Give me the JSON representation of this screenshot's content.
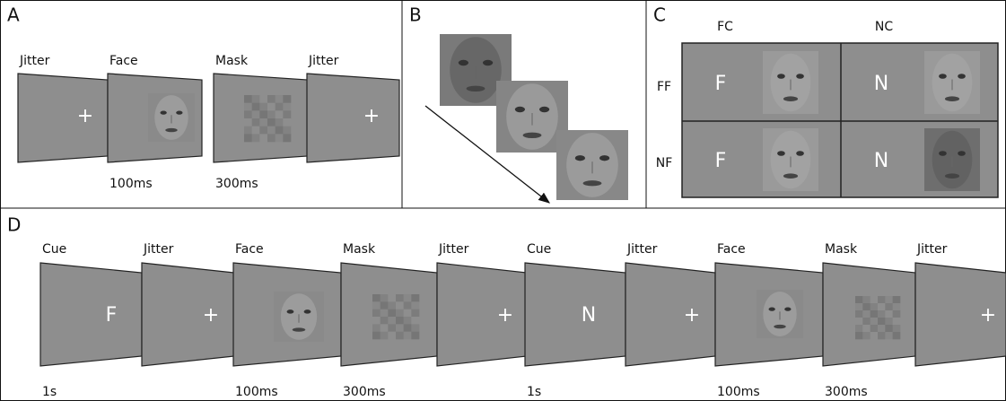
{
  "panel_a": {
    "label": "A",
    "steps": [
      {
        "name": "Jitter",
        "symbol": "+"
      },
      {
        "name": "Face",
        "duration": "100ms"
      },
      {
        "name": "Mask",
        "duration": "300ms"
      },
      {
        "name": "Jitter",
        "symbol": "+"
      }
    ]
  },
  "panel_b": {
    "label": "B"
  },
  "panel_c": {
    "label": "C",
    "columns": [
      "FC",
      "NC"
    ],
    "rows": [
      "FF",
      "NF"
    ],
    "cells": [
      [
        "F",
        "N"
      ],
      [
        "F",
        "N"
      ]
    ]
  },
  "panel_d": {
    "label": "D",
    "steps": [
      {
        "name": "Cue",
        "symbol": "F",
        "duration": "1s"
      },
      {
        "name": "Jitter",
        "symbol": "+"
      },
      {
        "name": "Face",
        "duration": "100ms"
      },
      {
        "name": "Mask",
        "duration": "300ms"
      },
      {
        "name": "Jitter",
        "symbol": "+"
      },
      {
        "name": "Cue",
        "symbol": "N",
        "duration": "1s"
      },
      {
        "name": "Jitter",
        "symbol": "+"
      },
      {
        "name": "Face",
        "duration": "100ms"
      },
      {
        "name": "Mask",
        "duration": "300ms"
      },
      {
        "name": "Jitter",
        "symbol": "+"
      }
    ]
  }
}
